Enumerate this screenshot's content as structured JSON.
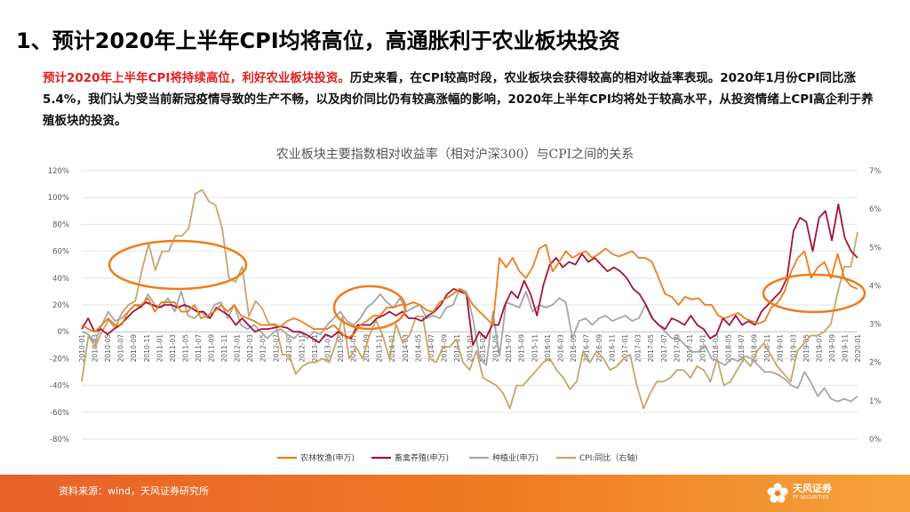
{
  "slide": {
    "title": "1、预计2020年上半年CPI均将高位，高通胀利于农业板块投资",
    "summary_highlight": "预计2020年上半年CPI将持续高位，利好农业板块投资。",
    "summary_rest": "历史来看，在CPI较高时段，农业板块会获得较高的相对收益率表现。2020年1月份CPI同比涨5.4%，我们认为受当前新冠疫情导致的生产不畅，以及肉价同比仍有较高涨幅的影响，2020年上半年CPI均将处于较高水平，从投资情绪上CPI高企利于养殖板块的投资。"
  },
  "footer": {
    "source": "资料来源：wind，天风证券研究所",
    "logo_cn": "天风证券",
    "logo_en": "TF SECURITIES"
  },
  "colors": {
    "nonglin": "#ed7d1c",
    "xuqin": "#a5123a",
    "zhongzhi": "#a6a6a6",
    "cpi": "#c7a46c",
    "highlight_ellipse": "#ed7d1c",
    "footer": "#ef7b24"
  },
  "chart_data": {
    "type": "line",
    "title": "农业板块主要指数相对收益率（相对沪深300）与CPI之间的关系",
    "xlabel": "",
    "ylabel_left": "",
    "ylabel_right": "",
    "ylim_left": [
      -80,
      120
    ],
    "yticks_left": [
      "120%",
      "100%",
      "80%",
      "60%",
      "40%",
      "20%",
      "0%",
      "-20%",
      "-40%",
      "-60%",
      "-80%"
    ],
    "ylim_right": [
      0,
      7
    ],
    "yticks_right": [
      "7%",
      "6%",
      "5%",
      "4%",
      "3%",
      "2%",
      "1%",
      "0%"
    ],
    "x_tick_labels": [
      "2010-01",
      "2010-03",
      "2010-05",
      "2010-07",
      "2010-09",
      "2010-11",
      "2011-01",
      "2011-03",
      "2011-05",
      "2011-07",
      "2011-09",
      "2011-11",
      "2012-01",
      "2012-03",
      "2012-05",
      "2012-07",
      "2012-09",
      "2012-11",
      "2013-01",
      "2013-03",
      "2013-05",
      "2013-07",
      "2013-09",
      "2013-11",
      "2014-01",
      "2014-03",
      "2014-05",
      "2014-07",
      "2014-09",
      "2014-11",
      "2015-01",
      "2015-03",
      "2015-05",
      "2015-07",
      "2015-09",
      "2015-11",
      "2016-01",
      "2016-03",
      "2016-05",
      "2016-07",
      "2016-09",
      "2016-11",
      "2017-01",
      "2017-03",
      "2017-05",
      "2017-07",
      "2017-09",
      "2017-11",
      "2018-01",
      "2018-03",
      "2018-05",
      "2018-07",
      "2018-09",
      "2018-11",
      "2019-01",
      "2019-03",
      "2019-05",
      "2019-07",
      "2019-09",
      "2019-11",
      "2020-01"
    ],
    "series": [
      {
        "name": "农林牧渔(申万)",
        "axis": "left",
        "color_key": "nonglin",
        "values": [
          5,
          2,
          0,
          5,
          10,
          5,
          5,
          15,
          20,
          20,
          25,
          15,
          22,
          22,
          22,
          15,
          15,
          20,
          10,
          12,
          15,
          20,
          15,
          20,
          12,
          10,
          8,
          5,
          5,
          5,
          4,
          8,
          10,
          8,
          5,
          2,
          2,
          2,
          5,
          0,
          -5,
          -2,
          5,
          8,
          12,
          12,
          18,
          18,
          20,
          20,
          22,
          20,
          16,
          15,
          22,
          25,
          28,
          32,
          28,
          20,
          15,
          10,
          5,
          55,
          48,
          55,
          45,
          40,
          48,
          62,
          65,
          45,
          52,
          60,
          55,
          58,
          60,
          55,
          58,
          62,
          58,
          56,
          58,
          60,
          55,
          55,
          52,
          40,
          28,
          26,
          20,
          26,
          24,
          25,
          20,
          20,
          12,
          10,
          12,
          14,
          10,
          8,
          6,
          8,
          18,
          22,
          30,
          45,
          55,
          60,
          40,
          48,
          52,
          40,
          58,
          40,
          34,
          32
        ],
        "ellipses": []
      },
      {
        "name": "畜禽养殖(申万)",
        "axis": "left",
        "color_key": "xuqin",
        "values": [
          2,
          10,
          0,
          2,
          -2,
          2,
          5,
          10,
          15,
          18,
          22,
          20,
          18,
          20,
          20,
          18,
          20,
          18,
          15,
          15,
          10,
          18,
          15,
          12,
          5,
          10,
          5,
          0,
          2,
          2,
          3,
          4,
          3,
          0,
          0,
          -2,
          -5,
          -8,
          -2,
          -4,
          0,
          -3,
          -5,
          5,
          5,
          5,
          10,
          12,
          15,
          12,
          15,
          10,
          10,
          8,
          12,
          15,
          20,
          28,
          32,
          30,
          28,
          -10,
          0,
          -5,
          5,
          5,
          20,
          30,
          25,
          38,
          28,
          12,
          35,
          50,
          55,
          48,
          52,
          50,
          58,
          52,
          55,
          50,
          45,
          48,
          45,
          40,
          32,
          28,
          20,
          10,
          5,
          2,
          10,
          8,
          5,
          12,
          5,
          2,
          -5,
          -2,
          10,
          5,
          12,
          5,
          8,
          5,
          15,
          20,
          25,
          30,
          40,
          75,
          85,
          82,
          60,
          85,
          90,
          68,
          95,
          70,
          60,
          55
        ],
        "ellipses": []
      },
      {
        "name": "种植业(申万)",
        "axis": "left",
        "color_key": "zhongzhi",
        "values": [
          0,
          -2,
          -8,
          5,
          15,
          8,
          10,
          15,
          20,
          18,
          28,
          20,
          18,
          25,
          15,
          30,
          12,
          10,
          15,
          10,
          20,
          22,
          10,
          20,
          5,
          2,
          5,
          0,
          -5,
          0,
          2,
          -2,
          -5,
          0,
          -5,
          0,
          -2,
          5,
          10,
          15,
          8,
          5,
          10,
          18,
          22,
          28,
          22,
          18,
          25,
          15,
          18,
          20,
          10,
          12,
          10,
          18,
          20,
          32,
          30,
          10,
          -20,
          -25,
          15,
          -18,
          22,
          20,
          18,
          30,
          15,
          20,
          18,
          20,
          25,
          22,
          -5,
          8,
          10,
          5,
          10,
          12,
          8,
          10,
          12,
          8,
          10,
          20,
          10,
          5,
          0,
          -5,
          -5,
          -10,
          -15,
          -15,
          -10,
          -20,
          -22,
          -25,
          -20,
          -22,
          -18,
          -20,
          -25,
          -30,
          -30,
          -32,
          -35,
          -40,
          -42,
          -30,
          -38,
          -48,
          -42,
          -50,
          -52,
          -50,
          -52,
          -48
        ],
        "ellipses": []
      },
      {
        "name": "CPI:同比（右轴）",
        "axis": "right",
        "color_key": "cpi",
        "values": [
          1.5,
          2.7,
          2.4,
          2.8,
          3.1,
          2.9,
          3.3,
          3.5,
          3.6,
          4.4,
          5.1,
          4.4,
          4.9,
          4.9,
          5.3,
          5.3,
          5.5,
          6.4,
          6.5,
          6.2,
          6.1,
          5.5,
          4.2,
          4.1,
          4.5,
          3.2,
          3.6,
          3.4,
          3.0,
          3.0,
          2.2,
          2.2,
          1.7,
          1.9,
          2.0,
          2.0,
          2.1,
          2.0,
          2.5,
          3.2,
          2.1,
          2.4,
          2.1,
          2.7,
          3.1,
          2.7,
          2.1,
          3.0,
          2.5,
          2.7,
          3.2,
          3.2,
          2.1,
          2.0,
          2.4,
          2.4,
          2.6,
          2.0,
          1.8,
          2.3,
          1.6,
          1.5,
          1.4,
          1.2,
          0.8,
          1.4,
          1.4,
          1.6,
          1.8,
          2.0,
          2.1,
          1.8,
          1.6,
          1.3,
          1.5,
          2.3,
          2.0,
          2.3,
          2.1,
          1.8,
          1.9,
          2.1,
          2.2,
          1.4,
          0.8,
          1.2,
          1.5,
          1.5,
          1.6,
          1.8,
          1.8,
          1.6,
          1.9,
          1.8,
          1.5,
          2.1,
          1.4,
          1.5,
          1.8,
          2.1,
          1.9,
          2.3,
          2.5,
          2.2,
          1.9,
          1.7,
          1.5,
          2.3,
          2.5,
          2.7,
          2.7,
          2.8,
          3.0,
          3.8,
          4.5,
          4.5,
          5.4
        ],
        "ellipses": []
      }
    ],
    "legend": [
      "农林牧渔(申万)",
      "畜禽养殖(申万)",
      "种植业(申万)",
      "CPI:同比（右轴）"
    ],
    "legend_position": "bottom"
  }
}
